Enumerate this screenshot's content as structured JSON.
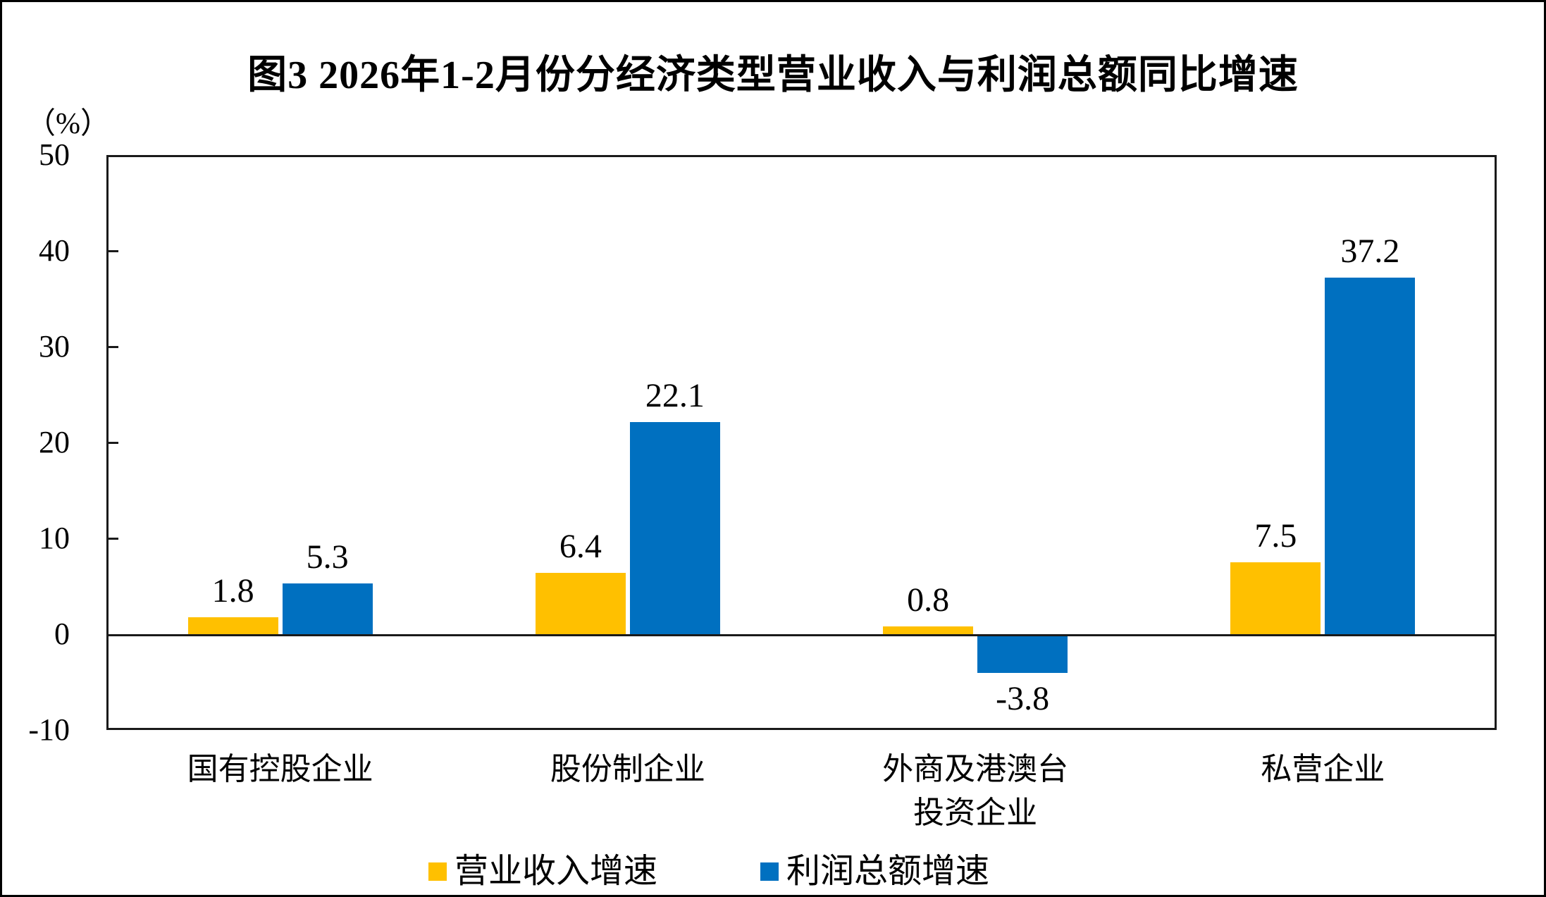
{
  "title": "图3 2026年1-2月份分经济类型营业收入与利润总额同比增速",
  "y_axis": {
    "unit_label": "（%）",
    "tick_labels": [
      "50",
      "40",
      "30",
      "20",
      "10",
      "0",
      "-10"
    ]
  },
  "legend": {
    "entries": [
      {
        "label": "营业收入增速",
        "color": "#FFC000"
      },
      {
        "label": "利润总额增速",
        "color": "#0070C0"
      }
    ]
  },
  "chart_data": {
    "type": "bar",
    "title": "图3 2026年1-2月份分经济类型营业收入与利润总额同比增速",
    "categories": [
      "国有控股企业",
      "股份制企业",
      "外商及港澳台\n投资企业",
      "私营企业"
    ],
    "series": [
      {
        "name": "营业收入增速",
        "color": "#FFC000",
        "values": [
          1.8,
          6.4,
          0.8,
          7.5
        ]
      },
      {
        "name": "利润总额增速",
        "color": "#0070C0",
        "values": [
          5.3,
          22.1,
          -3.8,
          37.2
        ]
      }
    ],
    "xlabel": "",
    "ylabel": "（%）",
    "ylim": [
      -10,
      50
    ],
    "yticks": [
      50,
      40,
      30,
      20,
      10,
      0,
      -10
    ],
    "grid": false,
    "legend_position": "bottom",
    "value_labels": true
  }
}
